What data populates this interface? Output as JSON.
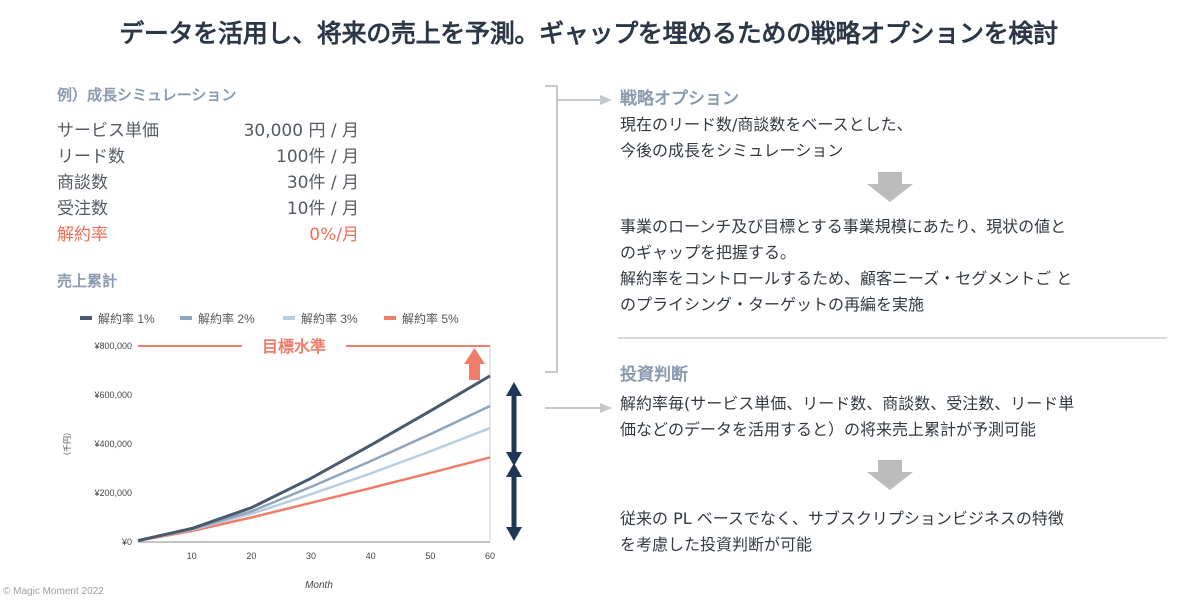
{
  "title": "データを活用し、将来の売上を予測。ギャップを埋めるための戦略オプションを検討",
  "simulation": {
    "heading": "例）成長シミュレーション",
    "rows": [
      {
        "label": "サービス単価",
        "value": "30,000 円 / 月"
      },
      {
        "label": "リード数",
        "value": "100件 / 月"
      },
      {
        "label": "商談数",
        "value": "30件 / 月"
      },
      {
        "label": "受注数",
        "value": "10件 / 月"
      },
      {
        "label": "解約率",
        "value": "0%/月"
      }
    ]
  },
  "chart_section": {
    "heading": "売上累計"
  },
  "chart_data": {
    "type": "line",
    "xlabel": "Month",
    "ylabel": "（千円）",
    "xlim": [
      1,
      60
    ],
    "ylim": [
      0,
      800000
    ],
    "x_ticks": [
      "10",
      "20",
      "30",
      "40",
      "50",
      "60"
    ],
    "y_ticks": [
      "¥0",
      "¥200,000",
      "¥400,000",
      "¥600,000",
      "¥800,000"
    ],
    "x": [
      1,
      10,
      20,
      30,
      40,
      50,
      60
    ],
    "series": [
      {
        "name": "解約率 1%",
        "color": "#4a5a6e",
        "values": [
          6000,
          55000,
          140000,
          260000,
          395000,
          535000,
          678000
        ]
      },
      {
        "name": "解約率 2%",
        "color": "#8ea5bd",
        "values": [
          6000,
          52000,
          125000,
          225000,
          330000,
          440000,
          555000
        ]
      },
      {
        "name": "解約率 3%",
        "color": "#b8cfe2",
        "values": [
          6000,
          50000,
          115000,
          195000,
          280000,
          370000,
          465000
        ]
      },
      {
        "name": "解約率 5%",
        "color": "#f07d6a",
        "values": [
          5000,
          45000,
          100000,
          160000,
          220000,
          282000,
          345000
        ]
      }
    ],
    "target": {
      "label": "目標水準",
      "value": 800000,
      "color": "#f07d6a"
    },
    "grid": false,
    "legend": "top"
  },
  "right": {
    "strategy_heading": "戦略オプション",
    "strategy_text_1": "現在のリード数/商談数をベースとした、\n今後の成長をシミュレーション",
    "strategy_text_2": "事業のローンチ及び目標とする事業規模にあたり、現状の値と\nのギャップを把握する。\n解約率をコントロールするため、顧客ニーズ・セグメントご と\nのプライシング・ターゲットの再編を実施",
    "investment_heading": "投資判断",
    "investment_text_1": "解約率毎(サービス単価、リード数、商談数、受注数、リード単\n価などのデータを活用すると）の将来売上累計が予測可能",
    "investment_text_2": "従来の PL ベースでなく、サブスクリプションビジネスの特徴\nを考慮した投資判断が可能"
  },
  "footer": {
    "copyright": "© Magic Moment 2022"
  }
}
